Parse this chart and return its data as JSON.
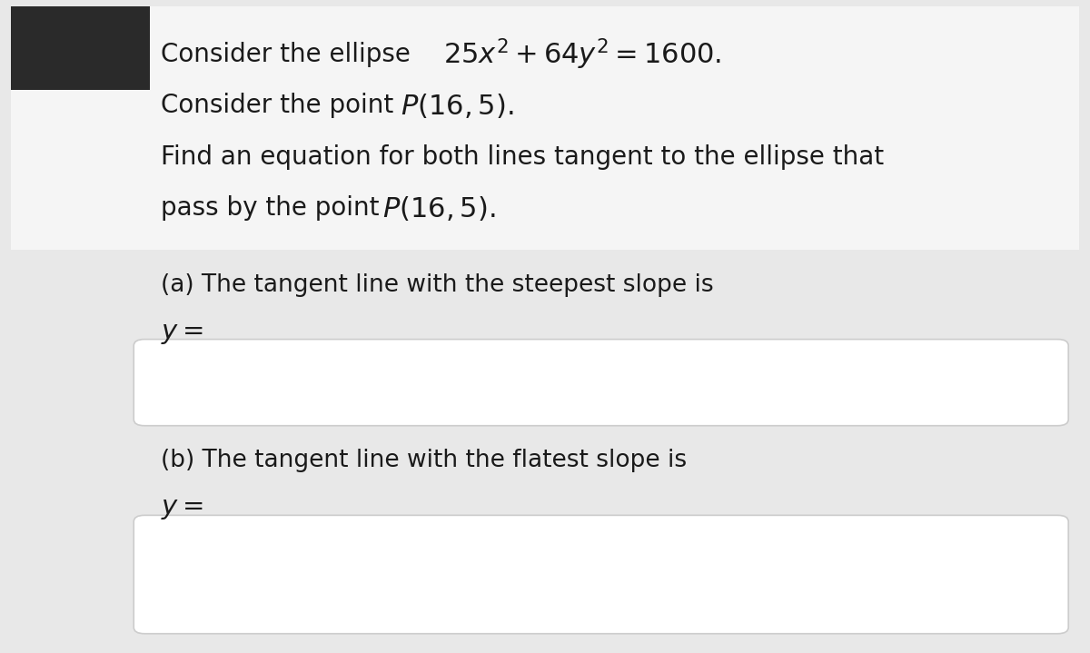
{
  "background_color": "#e8e8e8",
  "content_background": "#f5f5f5",
  "box_background": "#ffffff",
  "box_border_color": "#cccccc",
  "text_color": "#1a1a1a",
  "title_line1_plain": "Consider the ellipse ",
  "title_line1_math": "$25x^2 + 64y^2 = 1600$.",
  "title_line2_plain": "Consider the point ",
  "title_line2_math": "$P(16, 5)$.",
  "title_line3": "Find an equation for both lines tangent to the ellipse that",
  "title_line4_plain": "pass by the point ",
  "title_line4_math": "$P(16, 5)$.",
  "part_a_label": "(a) The tangent line with the steepest slope is",
  "part_a_y": "$y =$",
  "part_b_label": "(b) The tangent line with the flatest slope is",
  "part_b_y": "$y =$",
  "font_size_main": 20,
  "font_size_math": 22,
  "font_size_part": 19,
  "font_size_y": 21
}
